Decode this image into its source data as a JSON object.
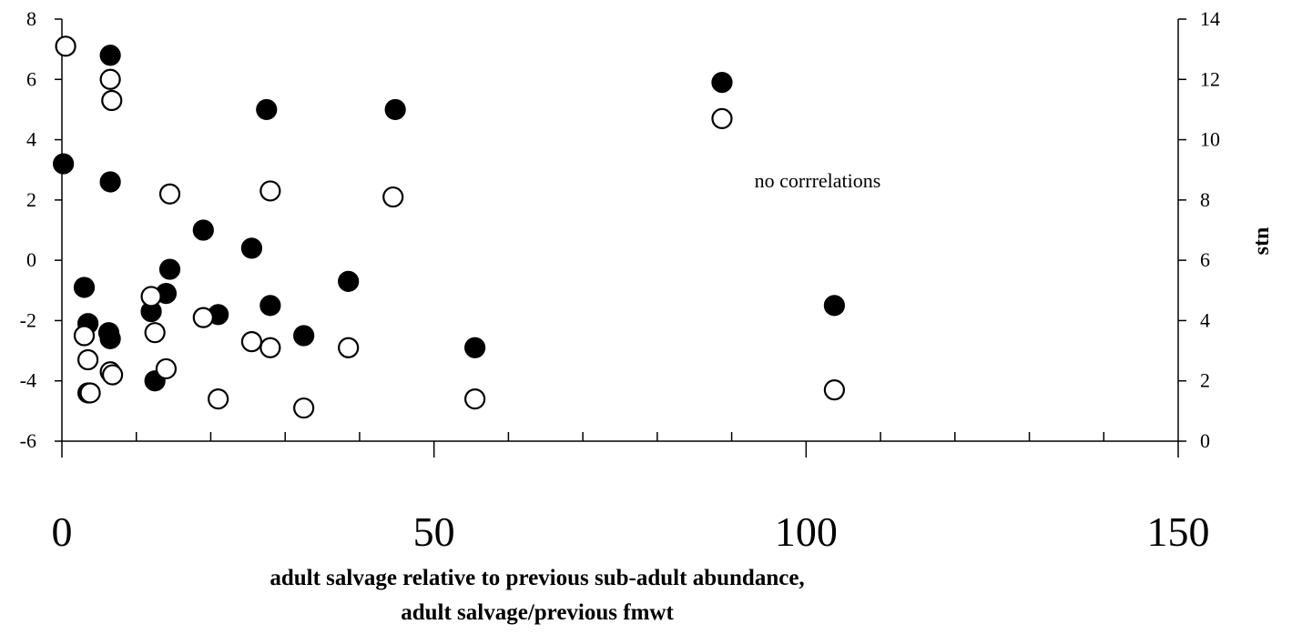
{
  "chart_data": {
    "type": "scatter",
    "title": "",
    "xlabel_lines": [
      "adult salvage relative to previous sub-adult abundance,",
      "adult salvage/previous fmwt"
    ],
    "ylabel_left": "",
    "ylabel_right": "stn",
    "annotation": "no corrrelations",
    "xlim": [
      0,
      150
    ],
    "x_ticks": [
      0,
      50,
      100,
      150
    ],
    "ylim_left": [
      -6,
      8
    ],
    "y_ticks_left": [
      8,
      6,
      4,
      2,
      0,
      -2,
      -4,
      -6
    ],
    "ylim_right": [
      0,
      14
    ],
    "y_ticks_right": [
      14,
      12,
      10,
      8,
      6,
      4,
      2,
      0
    ],
    "grid": false,
    "legend": "none",
    "series": [
      {
        "marker": "filled-circle",
        "axis": "left",
        "color": "#000000",
        "points": [
          [
            6.5,
            6.8
          ],
          [
            0.2,
            3.2
          ],
          [
            6.5,
            2.6
          ],
          [
            27.5,
            5.0
          ],
          [
            44.8,
            5.0
          ],
          [
            88.7,
            5.9
          ],
          [
            3.0,
            -0.9
          ],
          [
            3.5,
            -2.1
          ],
          [
            6.3,
            -2.4
          ],
          [
            6.5,
            -2.6
          ],
          [
            3.5,
            -4.4
          ],
          [
            12.0,
            -1.7
          ],
          [
            14.0,
            -1.1
          ],
          [
            14.5,
            -0.3
          ],
          [
            19.0,
            1.0
          ],
          [
            21.0,
            -1.8
          ],
          [
            12.5,
            -4.0
          ],
          [
            25.5,
            0.4
          ],
          [
            28.0,
            -1.5
          ],
          [
            32.5,
            -2.5
          ],
          [
            38.5,
            -0.7
          ],
          [
            55.5,
            -2.9
          ],
          [
            103.8,
            -1.5
          ]
        ]
      },
      {
        "marker": "open-circle",
        "axis": "right",
        "color": "#000000",
        "points": [
          [
            0.5,
            13.1
          ],
          [
            6.5,
            12.0
          ],
          [
            6.7,
            11.3
          ],
          [
            14.5,
            8.2
          ],
          [
            28.0,
            8.3
          ],
          [
            44.5,
            8.1
          ],
          [
            88.7,
            10.7
          ],
          [
            12.0,
            4.8
          ],
          [
            12.5,
            3.6
          ],
          [
            19.0,
            4.1
          ],
          [
            3.0,
            3.5
          ],
          [
            3.5,
            2.7
          ],
          [
            6.5,
            2.3
          ],
          [
            6.8,
            2.2
          ],
          [
            3.8,
            1.6
          ],
          [
            14.0,
            2.4
          ],
          [
            21.0,
            1.4
          ],
          [
            25.5,
            3.3
          ],
          [
            28.0,
            3.1
          ],
          [
            32.5,
            1.1
          ],
          [
            38.5,
            3.1
          ],
          [
            55.5,
            1.4
          ],
          [
            103.8,
            1.7
          ]
        ]
      }
    ]
  }
}
